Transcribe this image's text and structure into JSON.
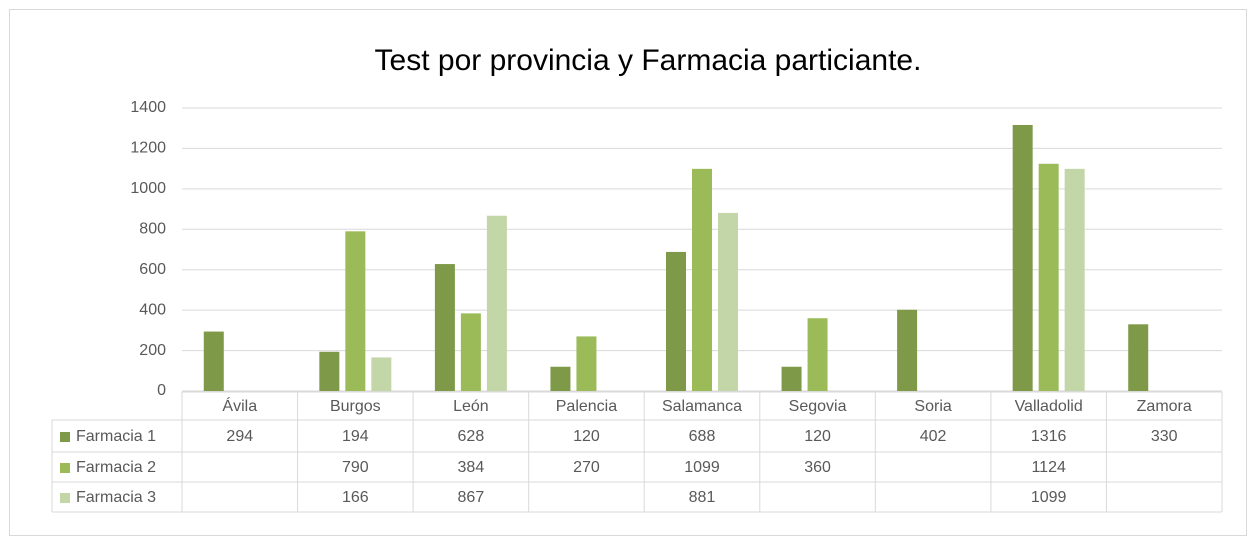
{
  "chart_data": {
    "type": "bar",
    "title": "Test por provincia y Farmacia particiante.",
    "categories": [
      "Ávila",
      "Burgos",
      "León",
      "Palencia",
      "Salamanca",
      "Segovia",
      "Soria",
      "Valladolid",
      "Zamora"
    ],
    "series": [
      {
        "name": "Farmacia 1",
        "color": "#7e9a48",
        "values": [
          294,
          194,
          628,
          120,
          688,
          120,
          402,
          1316,
          330
        ]
      },
      {
        "name": "Farmacia 2",
        "color": "#9bbb59",
        "values": [
          null,
          790,
          384,
          270,
          1099,
          360,
          null,
          1124,
          null
        ]
      },
      {
        "name": "Farmacia 3",
        "color": "#c3d6a7",
        "values": [
          null,
          166,
          867,
          null,
          881,
          null,
          null,
          1099,
          null
        ]
      }
    ],
    "ylim": [
      0,
      1400
    ],
    "yticks": [
      0,
      200,
      400,
      600,
      800,
      1000,
      1200,
      1400
    ],
    "grid": true
  }
}
